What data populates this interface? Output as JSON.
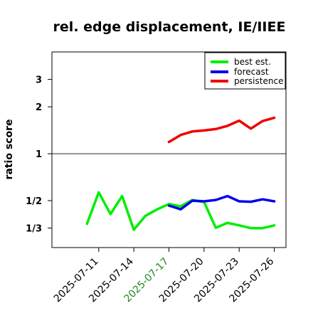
{
  "chart_data": {
    "type": "line",
    "title": "rel. edge displacement, IE/IIEE",
    "xlabel": "",
    "ylabel": "ratio score",
    "yscale": "log",
    "ylim": [
      0.25,
      4.5
    ],
    "xlim": [
      "2025-07-07",
      "2025-07-27"
    ],
    "y_ticks": [
      {
        "value": 0.3333,
        "label": "1/3"
      },
      {
        "value": 0.5,
        "label": "1/2"
      },
      {
        "value": 1,
        "label": "1"
      },
      {
        "value": 2,
        "label": "2"
      },
      {
        "value": 3,
        "label": "3"
      }
    ],
    "x_ticks": [
      {
        "date": "2025-07-11",
        "label": "2025-07-11",
        "color": "#000000"
      },
      {
        "date": "2025-07-14",
        "label": "2025-07-14",
        "color": "#000000"
      },
      {
        "date": "2025-07-17",
        "label": "2025-07-17",
        "color": "#228B22"
      },
      {
        "date": "2025-07-20",
        "label": "2025-07-20",
        "color": "#000000"
      },
      {
        "date": "2025-07-23",
        "label": "2025-07-23",
        "color": "#000000"
      },
      {
        "date": "2025-07-26",
        "label": "2025-07-26",
        "color": "#000000"
      }
    ],
    "reference_line": 1,
    "legend_position": "top-right",
    "series": [
      {
        "name": "best est.",
        "color": "#00ee00",
        "points": [
          {
            "x": "2025-07-10",
            "y": 0.355
          },
          {
            "x": "2025-07-11",
            "y": 0.565
          },
          {
            "x": "2025-07-12",
            "y": 0.41
          },
          {
            "x": "2025-07-13",
            "y": 0.535
          },
          {
            "x": "2025-07-14",
            "y": 0.325
          },
          {
            "x": "2025-07-15",
            "y": 0.4
          },
          {
            "x": "2025-07-16",
            "y": 0.44
          },
          {
            "x": "2025-07-17",
            "y": 0.475
          },
          {
            "x": "2025-07-18",
            "y": 0.46
          },
          {
            "x": "2025-07-19",
            "y": 0.505
          },
          {
            "x": "2025-07-20",
            "y": 0.49
          },
          {
            "x": "2025-07-21",
            "y": 0.335
          },
          {
            "x": "2025-07-22",
            "y": 0.36
          },
          {
            "x": "2025-07-23",
            "y": 0.347
          },
          {
            "x": "2025-07-24",
            "y": 0.333
          },
          {
            "x": "2025-07-25",
            "y": 0.333
          },
          {
            "x": "2025-07-26",
            "y": 0.347
          }
        ]
      },
      {
        "name": "forecast",
        "color": "#0000ee",
        "points": [
          {
            "x": "2025-07-17",
            "y": 0.465
          },
          {
            "x": "2025-07-18",
            "y": 0.44
          },
          {
            "x": "2025-07-19",
            "y": 0.5
          },
          {
            "x": "2025-07-20",
            "y": 0.495
          },
          {
            "x": "2025-07-21",
            "y": 0.505
          },
          {
            "x": "2025-07-22",
            "y": 0.535
          },
          {
            "x": "2025-07-23",
            "y": 0.495
          },
          {
            "x": "2025-07-24",
            "y": 0.492
          },
          {
            "x": "2025-07-25",
            "y": 0.51
          },
          {
            "x": "2025-07-26",
            "y": 0.495
          }
        ]
      },
      {
        "name": "persistence",
        "color": "#ee0000",
        "points": [
          {
            "x": "2025-07-17",
            "y": 1.19
          },
          {
            "x": "2025-07-18",
            "y": 1.32
          },
          {
            "x": "2025-07-19",
            "y": 1.39
          },
          {
            "x": "2025-07-20",
            "y": 1.41
          },
          {
            "x": "2025-07-21",
            "y": 1.44
          },
          {
            "x": "2025-07-22",
            "y": 1.51
          },
          {
            "x": "2025-07-23",
            "y": 1.63
          },
          {
            "x": "2025-07-24",
            "y": 1.45
          },
          {
            "x": "2025-07-25",
            "y": 1.62
          },
          {
            "x": "2025-07-26",
            "y": 1.7
          }
        ]
      }
    ]
  }
}
